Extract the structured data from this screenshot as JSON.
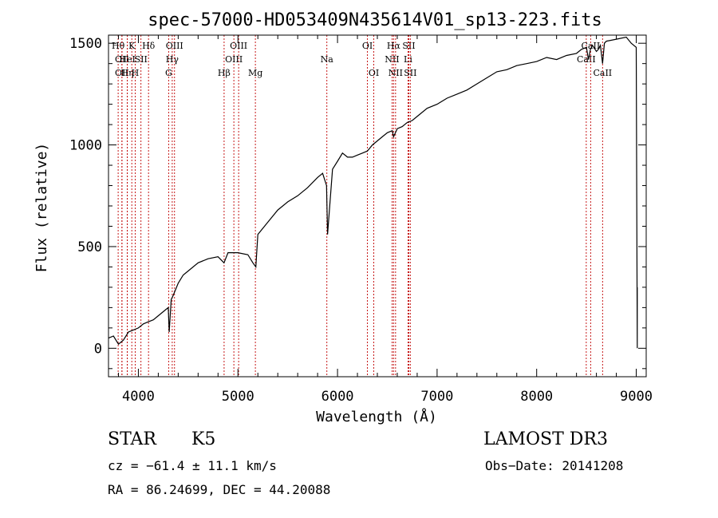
{
  "chart_data": {
    "type": "line",
    "title": "spec-57000-HD053409N435614V01_sp13-223.fits",
    "xlabel": "Wavelength (Å)",
    "ylabel": "Flux (relative)",
    "xlim": [
      3700,
      9100
    ],
    "ylim": [
      -140,
      1540
    ],
    "xticks": [
      4000,
      5000,
      6000,
      7000,
      8000,
      9000
    ],
    "yticks": [
      0,
      500,
      1000,
      1500
    ],
    "series": [
      {
        "name": "spectrum",
        "x": [
          3700,
          3750,
          3800,
          3850,
          3900,
          3950,
          4000,
          4050,
          4100,
          4150,
          4200,
          4250,
          4300,
          4310,
          4330,
          4350,
          4400,
          4450,
          4500,
          4600,
          4700,
          4800,
          4860,
          4900,
          5000,
          5100,
          5150,
          5180,
          5200,
          5300,
          5400,
          5500,
          5600,
          5700,
          5800,
          5850,
          5890,
          5900,
          5950,
          6000,
          6050,
          6100,
          6150,
          6200,
          6250,
          6300,
          6350,
          6400,
          6450,
          6500,
          6550,
          6563,
          6600,
          6650,
          6700,
          6750,
          6800,
          6900,
          7000,
          7100,
          7200,
          7300,
          7400,
          7500,
          7600,
          7700,
          7800,
          7900,
          8000,
          8100,
          8200,
          8300,
          8400,
          8450,
          8500,
          8520,
          8540,
          8560,
          8600,
          8620,
          8640,
          8662,
          8680,
          8700,
          8800,
          8900,
          8950,
          9000,
          9010,
          9010
        ],
        "y": [
          50,
          60,
          20,
          40,
          80,
          90,
          100,
          120,
          130,
          140,
          160,
          180,
          200,
          80,
          240,
          260,
          320,
          360,
          380,
          420,
          440,
          450,
          420,
          470,
          470,
          460,
          420,
          400,
          560,
          620,
          680,
          720,
          750,
          790,
          840,
          860,
          800,
          560,
          880,
          920,
          960,
          940,
          940,
          950,
          960,
          970,
          1000,
          1020,
          1040,
          1060,
          1070,
          1040,
          1080,
          1090,
          1110,
          1120,
          1140,
          1180,
          1200,
          1230,
          1250,
          1270,
          1300,
          1330,
          1360,
          1370,
          1390,
          1400,
          1410,
          1430,
          1420,
          1440,
          1450,
          1470,
          1480,
          1420,
          1470,
          1490,
          1460,
          1470,
          1490,
          1400,
          1500,
          1510,
          1520,
          1530,
          1500,
          1480,
          0,
          300
        ]
      }
    ],
    "line_markers": [
      {
        "wavelength": 3797,
        "label": "Hθ",
        "row": 0
      },
      {
        "wavelength": 3835,
        "label": "OII",
        "row": 1
      },
      {
        "wavelength": 3835,
        "label": "OII",
        "row": 2
      },
      {
        "wavelength": 3889,
        "label": "Hη",
        "row": 2
      },
      {
        "wavelength": 3889,
        "label": "HeI",
        "row": 1
      },
      {
        "wavelength": 3934,
        "label": "K",
        "row": 0
      },
      {
        "wavelength": 3968,
        "label": "H",
        "row": 2
      },
      {
        "wavelength": 4026,
        "label": "SII",
        "row": 1
      },
      {
        "wavelength": 4102,
        "label": "Hδ",
        "row": 0
      },
      {
        "wavelength": 4304,
        "label": "G",
        "row": 2
      },
      {
        "wavelength": 4340,
        "label": "Hγ",
        "row": 1
      },
      {
        "wavelength": 4363,
        "label": "OIII",
        "row": 0
      },
      {
        "wavelength": 4861,
        "label": "Hβ",
        "row": 2
      },
      {
        "wavelength": 4959,
        "label": "OIII",
        "row": 1
      },
      {
        "wavelength": 5007,
        "label": "OIII",
        "row": 0
      },
      {
        "wavelength": 5175,
        "label": "Mg",
        "row": 2
      },
      {
        "wavelength": 5893,
        "label": "Na",
        "row": 1
      },
      {
        "wavelength": 6300,
        "label": "OI",
        "row": 0
      },
      {
        "wavelength": 6364,
        "label": "OI",
        "row": 2
      },
      {
        "wavelength": 6548,
        "label": "NII",
        "row": 1
      },
      {
        "wavelength": 6563,
        "label": "Hα",
        "row": 0
      },
      {
        "wavelength": 6583,
        "label": "NII",
        "row": 2
      },
      {
        "wavelength": 6708,
        "label": "Li",
        "row": 1
      },
      {
        "wavelength": 6716,
        "label": "SII",
        "row": 0
      },
      {
        "wavelength": 6731,
        "label": "SII",
        "row": 2
      },
      {
        "wavelength": 8498,
        "label": "CaII",
        "row": 1
      },
      {
        "wavelength": 8542,
        "label": "CaII",
        "row": 0
      },
      {
        "wavelength": 8662,
        "label": "CaII",
        "row": 2
      }
    ]
  },
  "info": {
    "object_class": "STAR",
    "subclass": "K5",
    "survey": "LAMOST DR3",
    "cz": "cz = −61.4 ± 11.1 km/s",
    "obs_date": "Obs−Date: 20141208",
    "coords": "RA =  86.24699, DEC =  44.20088"
  },
  "colors": {
    "spectrum": "#000000",
    "marker": "#c00000",
    "axis": "#000000"
  }
}
